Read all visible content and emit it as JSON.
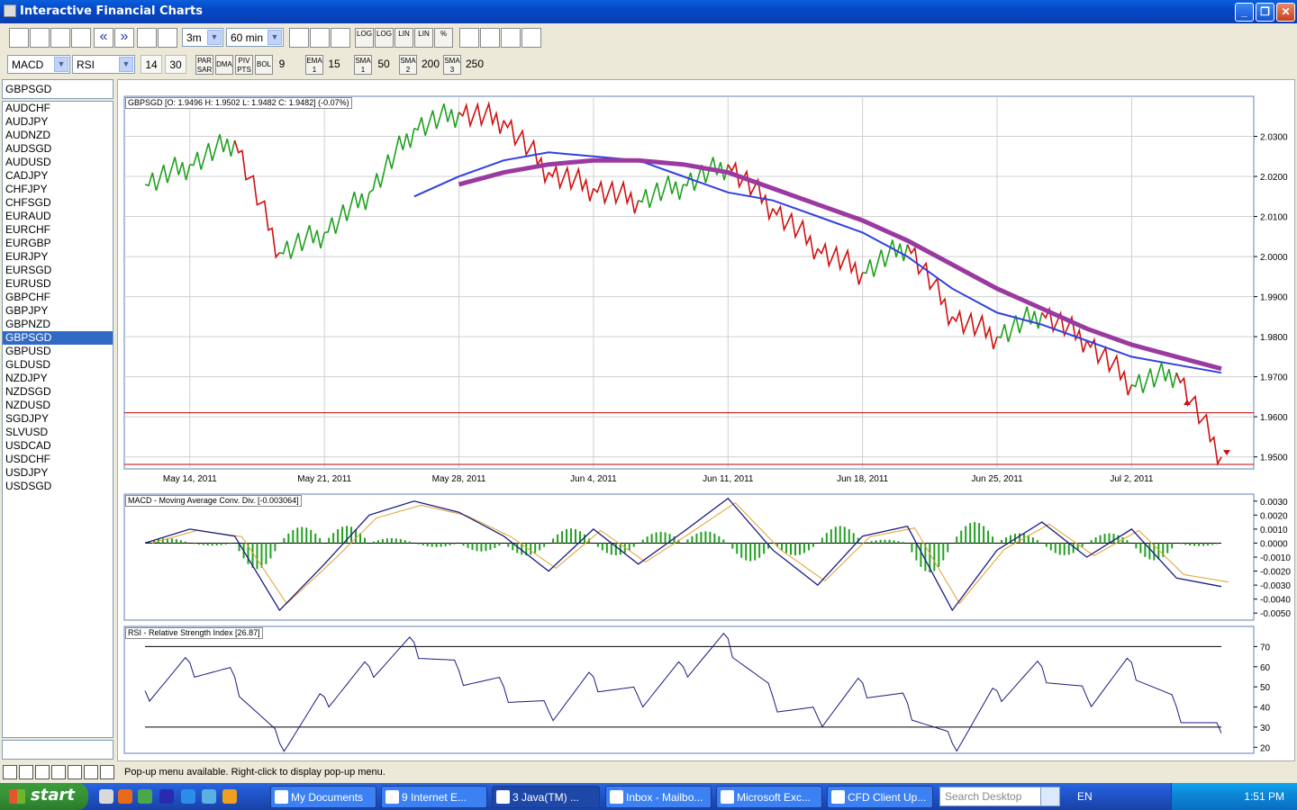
{
  "window": {
    "title": "Interactive Financial Charts",
    "minimize": "_",
    "maximize": "❐",
    "close": "✕"
  },
  "toolbar1": {
    "period": "3m",
    "interval": "60 min",
    "nav_prev": "«",
    "nav_next": "»",
    "log_buttons": [
      "LOG",
      "LOG",
      "LIN",
      "LIN",
      "%"
    ]
  },
  "toolbar2": {
    "indicator1": "MACD",
    "indicator2": "RSI",
    "rsi_period": "14",
    "rsi_other": "30",
    "par_sar_label": "PAR\nSAR",
    "dma_label": "DMA",
    "piv_pts_label": "PIV\nPTS",
    "bol_label": "BOL",
    "bol_value": "9",
    "ema_label": "EMA\n1",
    "ema_value": "15",
    "sma1_label": "SMA\n1",
    "sma1_value": "50",
    "sma2_label": "SMA\n2",
    "sma2_value": "200",
    "sma3_label": "SMA\n3",
    "sma3_value": "250"
  },
  "symbols": {
    "current": "GBPSGD",
    "list": [
      "AUDCHF",
      "AUDJPY",
      "AUDNZD",
      "AUDSGD",
      "AUDUSD",
      "CADJPY",
      "CHFJPY",
      "CHFSGD",
      "EURAUD",
      "EURCHF",
      "EURGBP",
      "EURJPY",
      "EURSGD",
      "EURUSD",
      "GBPCHF",
      "GBPJPY",
      "GBPNZD",
      "GBPSGD",
      "GBPUSD",
      "GLDUSD",
      "NZDJPY",
      "NZDSGD",
      "NZDUSD",
      "SGDJPY",
      "SLVUSD",
      "USDCAD",
      "USDCHF",
      "USDJPY",
      "USDSGD"
    ],
    "active_index": 17
  },
  "price_panel": {
    "label": "GBPSGD [O: 1.9496  H: 1.9502  L: 1.9482  C: 1.9482] (-0.07%)",
    "y_ticks": [
      "2.0300",
      "2.0200",
      "2.0100",
      "2.0000",
      "1.9900",
      "1.9800",
      "1.9700",
      "1.9600",
      "1.9500"
    ],
    "x_ticks": [
      "May 14, 2011",
      "May 21, 2011",
      "May 28, 2011",
      "Jun 4, 2011",
      "Jun 11, 2011",
      "Jun 18, 2011",
      "Jun 25, 2011",
      "Jul 2, 2011"
    ]
  },
  "macd_panel": {
    "label": "MACD - Moving Average Conv. Div. [-0.003064]",
    "y_ticks": [
      "0.0030",
      "0.0020",
      "0.0010",
      "0.0000",
      "-0.0010",
      "-0.0020",
      "-0.0030",
      "-0.0040",
      "-0.0050"
    ]
  },
  "rsi_panel": {
    "label": "RSI - Relative Strength Index [26.87]",
    "y_ticks": [
      "70",
      "60",
      "50",
      "40",
      "30",
      "20"
    ]
  },
  "chart_data": [
    {
      "type": "line",
      "title": "GBPSGD [O: 1.9496  H: 1.9502  L: 1.9482  C: 1.9482] (-0.07%)",
      "x_label": "",
      "y_label": "",
      "x": [
        "May 12, 2011",
        "May 14, 2011",
        "May 16, 2011",
        "May 18, 2011",
        "May 21, 2011",
        "May 23, 2011",
        "May 25, 2011",
        "May 28, 2011",
        "May 30, 2011",
        "Jun 1, 2011",
        "Jun 4, 2011",
        "Jun 6, 2011",
        "Jun 8, 2011",
        "Jun 11, 2011",
        "Jun 13, 2011",
        "Jun 15, 2011",
        "Jun 18, 2011",
        "Jun 20, 2011",
        "Jun 22, 2011",
        "Jun 25, 2011",
        "Jun 27, 2011",
        "Jun 29, 2011",
        "Jul 2, 2011",
        "Jul 4, 2011",
        "Jul 6, 2011"
      ],
      "series": [
        {
          "values": [
            2.018,
            2.023,
            2.029,
            2.001,
            2.006,
            2.016,
            2.032,
            2.036,
            2.034,
            2.021,
            2.017,
            2.014,
            2.018,
            2.023,
            2.012,
            2.002,
            1.996,
            2.003,
            1.985,
            1.98,
            1.986,
            1.979,
            1.968,
            1.971,
            1.95
          ],
          "color": "#20a020"
        },
        {
          "values": [
            null,
            null,
            null,
            null,
            null,
            null,
            2.015,
            2.02,
            2.024,
            2.026,
            2.025,
            2.024,
            2.02,
            2.016,
            2.014,
            2.01,
            2.006,
            2.0,
            1.992,
            1.986,
            1.983,
            1.979,
            1.975,
            1.973,
            1.971
          ],
          "color": "#3040e0"
        },
        {
          "values": [
            null,
            null,
            null,
            null,
            null,
            null,
            null,
            2.018,
            2.021,
            2.023,
            2.024,
            2.024,
            2.023,
            2.021,
            2.017,
            2.013,
            2.009,
            2.004,
            1.998,
            1.992,
            1.987,
            1.982,
            1.978,
            1.975,
            1.972
          ],
          "color": "#9a3aa0"
        }
      ],
      "hline": 1.961,
      "ylim": [
        1.947,
        2.04
      ],
      "grid": true
    },
    {
      "type": "line",
      "title": "MACD - Moving Average Conv. Div. [-0.003064]",
      "x_label": "",
      "y_label": "",
      "series": [
        {
          "values": [
            0.0,
            0.001,
            0.0005,
            -0.0048,
            -0.0015,
            0.002,
            0.003,
            0.0022,
            0.0005,
            -0.002,
            0.001,
            -0.0015,
            0.0008,
            0.0032,
            -0.0005,
            -0.003,
            0.0005,
            0.0012,
            -0.0048,
            -0.0005,
            0.0015,
            -0.001,
            0.001,
            -0.0025,
            -0.0031
          ]
        }
      ],
      "ylim": [
        -0.0055,
        0.0035
      ]
    },
    {
      "type": "line",
      "title": "RSI - Relative Strength Index [26.87]",
      "x_label": "",
      "y_label": "",
      "series": [
        {
          "values": [
            48,
            62,
            55,
            22,
            45,
            60,
            72,
            58,
            50,
            38,
            55,
            45,
            60,
            74,
            45,
            35,
            52,
            42,
            22,
            48,
            60,
            45,
            62,
            40,
            27
          ]
        }
      ],
      "hlines": [
        70,
        30
      ],
      "ylim": [
        17,
        80
      ]
    }
  ],
  "statusbar": {
    "message": "Pop-up menu available. Right-click to display pop-up menu."
  },
  "taskbar": {
    "start": "start",
    "tasks": [
      "My Documents",
      "9 Internet E...",
      "3 Java(TM) ...",
      "Inbox - Mailbo...",
      "Microsoft Exc...",
      "CFD Client Up..."
    ],
    "search_placeholder": "Search Desktop",
    "lang": "EN",
    "clock": "1:51 PM"
  }
}
